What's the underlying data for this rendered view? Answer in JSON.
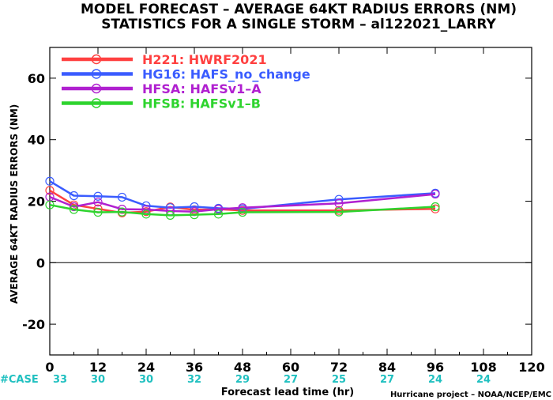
{
  "chart_data": {
    "type": "line",
    "title": "MODEL FORECAST – AVERAGE 64KT RADIUS ERRORS (NM)",
    "subtitle": "STATISTICS FOR A SINGLE STORM – al122021_LARRY",
    "xlabel": "Forecast lead time (hr)",
    "ylabel": "AVERAGE 64KT RADIUS ERRORS (NM)",
    "xlim": [
      0,
      120
    ],
    "ylim": [
      -30,
      70
    ],
    "x_ticks": [
      0,
      12,
      24,
      36,
      48,
      60,
      72,
      84,
      96,
      108,
      120
    ],
    "y_ticks": [
      -20,
      0,
      20,
      40,
      60
    ],
    "grid": false,
    "legend_position": "top-left",
    "case_label": "#CASE",
    "case_counts": [
      {
        "x": 0,
        "n": "33"
      },
      {
        "x": 12,
        "n": "30"
      },
      {
        "x": 24,
        "n": "30"
      },
      {
        "x": 36,
        "n": "32"
      },
      {
        "x": 48,
        "n": "29"
      },
      {
        "x": 60,
        "n": "27"
      },
      {
        "x": 72,
        "n": "25"
      },
      {
        "x": 84,
        "n": "27"
      },
      {
        "x": 96,
        "n": "24"
      },
      {
        "x": 108,
        "n": "24"
      }
    ],
    "credit": "Hurricane project – NOAA/NCEP/EMC",
    "series": [
      {
        "name": "H221: HWRF2021",
        "color": "#ff4040",
        "x": [
          0,
          6,
          12,
          18,
          24,
          30,
          36,
          42,
          48,
          72,
          96
        ],
        "y": [
          23.5,
          18.8,
          17.5,
          16.2,
          16.6,
          18.1,
          17.2,
          17.4,
          17.0,
          17.0,
          17.5
        ]
      },
      {
        "name": "HG16: HAFS_no_change",
        "color": "#3a5cff",
        "x": [
          0,
          6,
          12,
          18,
          24,
          30,
          36,
          42,
          48,
          72,
          96
        ],
        "y": [
          26.5,
          21.8,
          21.6,
          21.3,
          18.5,
          17.9,
          18.2,
          17.7,
          17.5,
          20.6,
          22.6
        ]
      },
      {
        "name": "HFSA: HAFSv1–A",
        "color": "#b020d0",
        "x": [
          0,
          6,
          12,
          18,
          24,
          30,
          36,
          42,
          48,
          72,
          96
        ],
        "y": [
          21.4,
          18.2,
          19.7,
          17.4,
          17.3,
          16.8,
          16.6,
          17.4,
          17.9,
          19.3,
          22.3
        ]
      },
      {
        "name": "HFSB: HAFSv1–B",
        "color": "#2ed42e",
        "x": [
          0,
          6,
          12,
          18,
          24,
          30,
          36,
          42,
          48,
          72,
          96
        ],
        "y": [
          18.8,
          17.3,
          16.4,
          16.5,
          15.8,
          15.4,
          15.6,
          15.8,
          16.4,
          16.5,
          18.2
        ]
      }
    ]
  }
}
